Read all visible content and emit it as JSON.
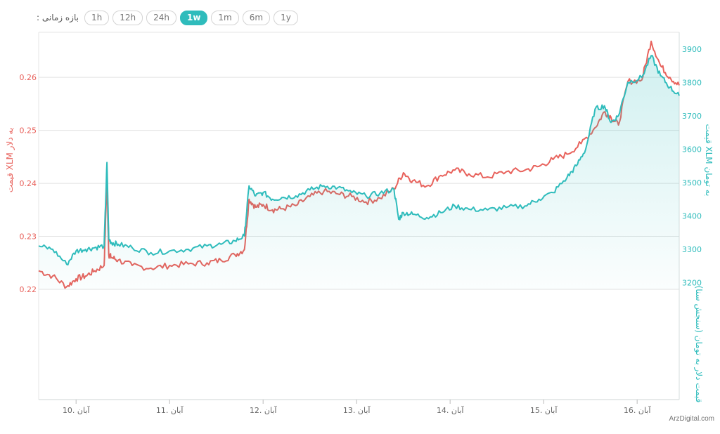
{
  "range_selector": {
    "label": ": بازه زمانی",
    "options": [
      "1h",
      "12h",
      "24h",
      "1w",
      "1m",
      "6m",
      "1y"
    ],
    "active": "1w"
  },
  "watermark": "ArzDigital.com",
  "colors": {
    "usd": "#e8625c",
    "toman": "#2fbcbc",
    "grid": "#e2e2e2"
  },
  "chart_data": {
    "type": "line",
    "x_ticks": [
      "10. آبان",
      "11. آبان",
      "12. آبان",
      "13. آبان",
      "14. آبان",
      "15. آبان",
      "16. آبان"
    ],
    "x_range": [
      9.6,
      16.45
    ],
    "y_left": {
      "label": "قیمت XLM به دلار",
      "ticks": [
        0.22,
        0.23,
        0.24,
        0.25,
        0.26
      ],
      "range": [
        0.22,
        0.2685
      ]
    },
    "y_right": {
      "label": "قیمت XLM به تومان",
      "ticks": [
        3200,
        3300,
        3400,
        3500,
        3600,
        3700,
        3800,
        3900
      ],
      "range": [
        3180,
        3950
      ]
    },
    "y_right_lower": {
      "label": "قیمت دلار به تومان (سنجش سنا)"
    },
    "grid": true,
    "legend": "none",
    "series": [
      {
        "axis": "left",
        "color": "#e8625c",
        "x": [
          9.6,
          9.75,
          9.9,
          10.0,
          10.1,
          10.2,
          10.3,
          10.33,
          10.35,
          10.38,
          10.45,
          10.6,
          10.8,
          11.0,
          11.2,
          11.4,
          11.55,
          11.7,
          11.8,
          11.85,
          11.92,
          12.0,
          12.1,
          12.2,
          12.35,
          12.5,
          12.65,
          12.8,
          12.95,
          13.1,
          13.25,
          13.4,
          13.5,
          13.6,
          13.75,
          13.9,
          14.05,
          14.2,
          14.4,
          14.6,
          14.8,
          14.95,
          15.1,
          15.25,
          15.4,
          15.55,
          15.65,
          15.72,
          15.8,
          15.9,
          16.05,
          16.15,
          16.25,
          16.35,
          16.45
        ],
        "y": [
          0.2235,
          0.2225,
          0.2205,
          0.222,
          0.2225,
          0.2235,
          0.2245,
          0.241,
          0.2265,
          0.226,
          0.2255,
          0.2245,
          0.224,
          0.2245,
          0.2248,
          0.225,
          0.2255,
          0.2265,
          0.2275,
          0.237,
          0.2355,
          0.236,
          0.235,
          0.2352,
          0.2358,
          0.2375,
          0.2385,
          0.238,
          0.2375,
          0.2365,
          0.2372,
          0.239,
          0.242,
          0.2405,
          0.2395,
          0.2415,
          0.2425,
          0.2418,
          0.2412,
          0.2422,
          0.2425,
          0.2432,
          0.2445,
          0.2455,
          0.2475,
          0.2505,
          0.2535,
          0.2525,
          0.251,
          0.2592,
          0.2595,
          0.2668,
          0.2622,
          0.26,
          0.2585
        ]
      },
      {
        "axis": "right",
        "color": "#2fbcbc",
        "x": [
          9.6,
          9.75,
          9.9,
          10.0,
          10.1,
          10.2,
          10.3,
          10.33,
          10.35,
          10.38,
          10.45,
          10.6,
          10.8,
          11.0,
          11.2,
          11.4,
          11.55,
          11.7,
          11.8,
          11.85,
          11.92,
          12.0,
          12.1,
          12.2,
          12.35,
          12.5,
          12.65,
          12.8,
          12.95,
          13.1,
          13.25,
          13.4,
          13.45,
          13.5,
          13.6,
          13.75,
          13.9,
          14.05,
          14.2,
          14.4,
          14.6,
          14.8,
          14.95,
          15.1,
          15.25,
          15.35,
          15.45,
          15.55,
          15.65,
          15.72,
          15.8,
          15.9,
          16.05,
          16.15,
          16.25,
          16.35,
          16.45
        ],
        "y": [
          3310,
          3300,
          3255,
          3295,
          3300,
          3305,
          3310,
          3560,
          3330,
          3320,
          3315,
          3305,
          3290,
          3295,
          3300,
          3310,
          3315,
          3325,
          3340,
          3490,
          3460,
          3470,
          3450,
          3455,
          3460,
          3478,
          3490,
          3485,
          3470,
          3460,
          3468,
          3480,
          3390,
          3410,
          3405,
          3395,
          3410,
          3430,
          3420,
          3418,
          3425,
          3430,
          3450,
          3470,
          3515,
          3550,
          3600,
          3720,
          3730,
          3680,
          3700,
          3800,
          3815,
          3880,
          3820,
          3785,
          3760
        ]
      }
    ]
  }
}
